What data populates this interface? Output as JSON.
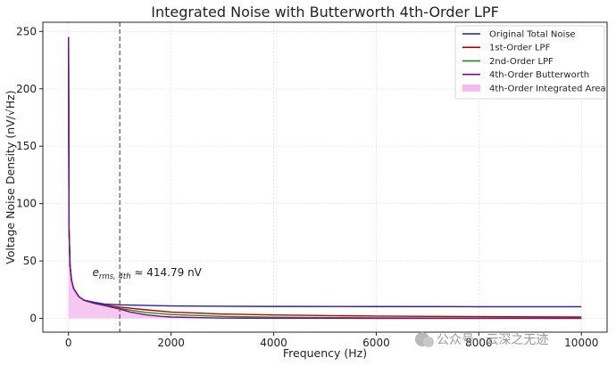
{
  "chart_data": {
    "type": "line",
    "title": "Integrated Noise with Butterworth 4th-Order LPF",
    "xlabel": "Frequency (Hz)",
    "ylabel": "Voltage Noise Density (nV/√Hz)",
    "xlim": [
      -500,
      10500
    ],
    "ylim": [
      -12,
      258
    ],
    "x_ticks": [
      0,
      2000,
      4000,
      6000,
      8000,
      10000
    ],
    "x_tick_labels": [
      "0",
      "2000",
      "4000",
      "6000",
      "8000",
      "10000"
    ],
    "y_ticks": [
      0,
      50,
      100,
      150,
      200,
      250
    ],
    "y_tick_labels": [
      "0",
      "50",
      "100",
      "150",
      "200",
      "250"
    ],
    "grid": true,
    "legend_position": "top-right",
    "cutoff_line_x": 1000,
    "colors": {
      "original": "#1f1fb4",
      "first": "#c00000",
      "second": "#1a8a1a",
      "fourth": "#7a0a8a",
      "fill": "#f2a8ea",
      "cutoff": "#555555"
    },
    "series": [
      {
        "name": "Original Total Noise",
        "x": [
          1,
          10,
          30,
          60,
          100,
          200,
          300,
          500,
          700,
          1000,
          2000,
          4000,
          6000,
          8000,
          10000
        ],
        "y": [
          245,
          79,
          46,
          33,
          26,
          19,
          16,
          14,
          12.5,
          11.8,
          10.8,
          10.4,
          10.3,
          10.2,
          10.2
        ]
      },
      {
        "name": "1st-Order LPF",
        "x": [
          1,
          10,
          30,
          60,
          100,
          200,
          300,
          500,
          700,
          1000,
          1500,
          2000,
          3000,
          4000,
          6000,
          8000,
          10000
        ],
        "y": [
          245,
          79,
          46,
          33,
          26,
          19,
          15.8,
          13.3,
          11.5,
          9.9,
          7.5,
          5.5,
          3.8,
          3.0,
          2.0,
          1.5,
          1.2
        ]
      },
      {
        "name": "2nd-Order LPF",
        "x": [
          1,
          10,
          30,
          60,
          100,
          200,
          300,
          500,
          700,
          1000,
          1500,
          2000,
          3000,
          4000,
          6000,
          8000,
          10000
        ],
        "y": [
          245,
          79,
          46,
          33,
          26,
          19,
          15.8,
          13.3,
          11.3,
          8.6,
          5.2,
          3.4,
          1.7,
          1.0,
          0.5,
          0.3,
          0.2
        ]
      },
      {
        "name": "4th-Order Butterworth",
        "x": [
          1,
          10,
          30,
          60,
          100,
          200,
          300,
          500,
          700,
          1000,
          1200,
          1500,
          1800,
          2000,
          3000,
          4000,
          6000,
          8000,
          10000
        ],
        "y": [
          245,
          79,
          46,
          33,
          26,
          19,
          15.8,
          13.2,
          11.2,
          8.1,
          5.6,
          3.2,
          1.8,
          1.2,
          0.3,
          0.1,
          0.02,
          0.01,
          0.0
        ]
      }
    ],
    "fill_series": "4th-Order Integrated Area",
    "legend": [
      "Original Total Noise",
      "1st-Order LPF",
      "2nd-Order LPF",
      "4th-Order Butterworth",
      "4th-Order Integrated Area"
    ],
    "annotation": {
      "symbol": "e",
      "subscript": "rms, 4th",
      "text": " ≈ 414.79 nV",
      "x": 500,
      "y": 37
    },
    "watermark": "公众号 · 云深之无迹"
  }
}
